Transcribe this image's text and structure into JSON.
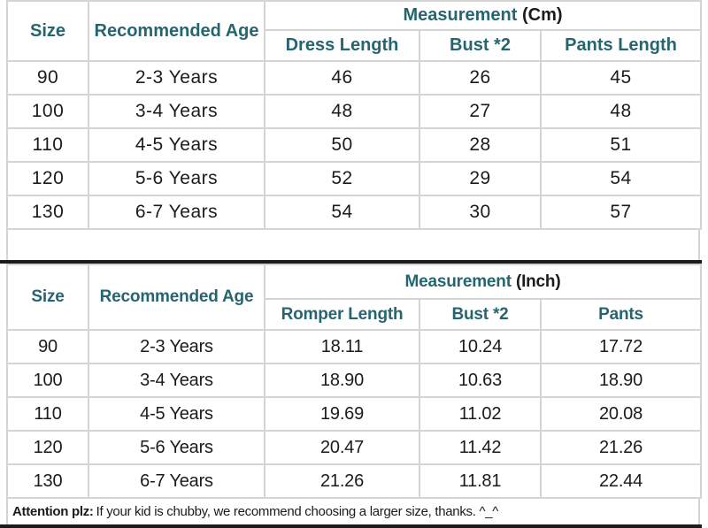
{
  "colors": {
    "teal": "#266570",
    "ink": "#1b1b1b",
    "grid": "#d4d4d4",
    "heavy_line": "#1c1c1c"
  },
  "cm_table": {
    "size_header": "Size",
    "age_header": "Recommended Age",
    "measurement_label": "Measurement",
    "unit_label": "(Cm)",
    "sub_headers": [
      "Dress Length",
      "Bust *2",
      "Pants Length"
    ],
    "rows": [
      [
        "90",
        "2-3 Years",
        "46",
        "26",
        "45"
      ],
      [
        "100",
        "3-4 Years",
        "48",
        "27",
        "48"
      ],
      [
        "110",
        "4-5 Years",
        "50",
        "28",
        "51"
      ],
      [
        "120",
        "5-6 Years",
        "52",
        "29",
        "54"
      ],
      [
        "130",
        "6-7 Years",
        "54",
        "30",
        "57"
      ]
    ]
  },
  "inch_table": {
    "size_header": "Size",
    "age_header": "Recommended Age",
    "measurement_label": "Measurement",
    "unit_label": "(Inch)",
    "sub_headers": [
      "Romper Length",
      "Bust *2",
      "Pants"
    ],
    "rows": [
      [
        "90",
        "2-3 Years",
        "18.11",
        "10.24",
        "17.72"
      ],
      [
        "100",
        "3-4 Years",
        "18.90",
        "10.63",
        "18.90"
      ],
      [
        "110",
        "4-5 Years",
        "19.69",
        "11.02",
        "20.08"
      ],
      [
        "120",
        "5-6 Years",
        "20.47",
        "11.42",
        "21.26"
      ],
      [
        "130",
        "6-7 Years",
        "21.26",
        "11.81",
        "22.44"
      ]
    ]
  },
  "footer": {
    "attention_label": "Attention plz:",
    "attention_text": "If your kid is chubby, we recommend choosing a larger size, thanks. ^_^"
  }
}
